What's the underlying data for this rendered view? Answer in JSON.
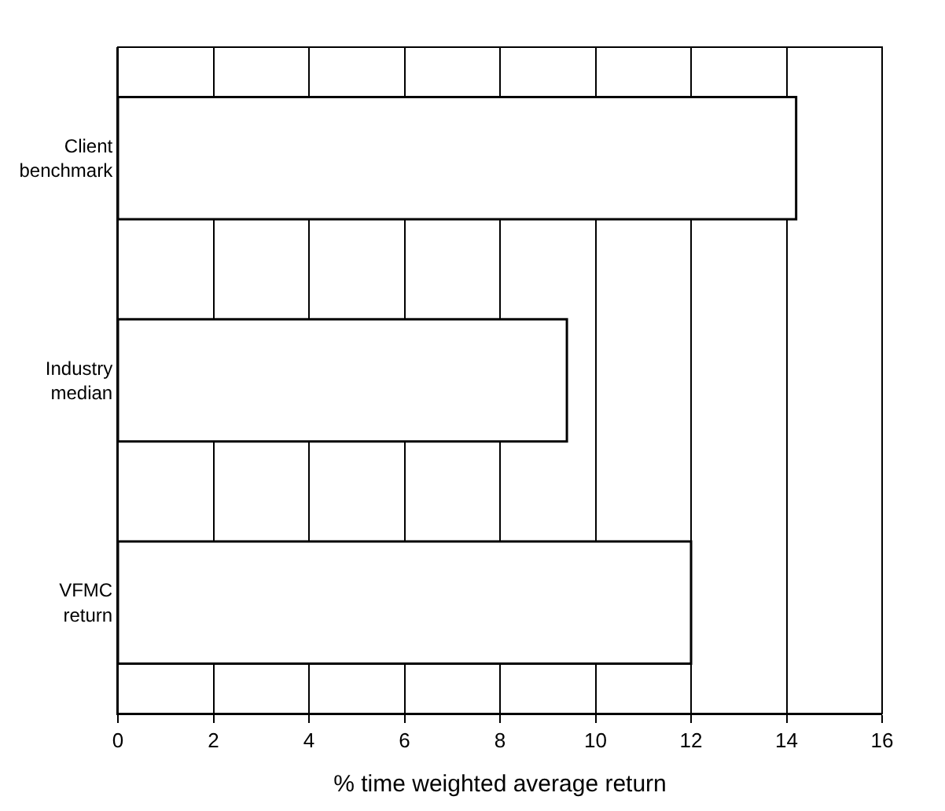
{
  "chart_data": {
    "type": "bar",
    "orientation": "horizontal",
    "xlabel": "% time weighted average return",
    "categories": [
      "Client\nbenchmark",
      "Industry\nmedian",
      "VFMC\nreturn"
    ],
    "values": [
      14.2,
      9.4,
      12.0
    ],
    "color": "#ffffff",
    "xlim": [
      0,
      16
    ],
    "xticks": [
      0,
      2,
      4,
      6,
      8,
      10,
      12,
      14,
      16
    ],
    "grid": "x"
  }
}
